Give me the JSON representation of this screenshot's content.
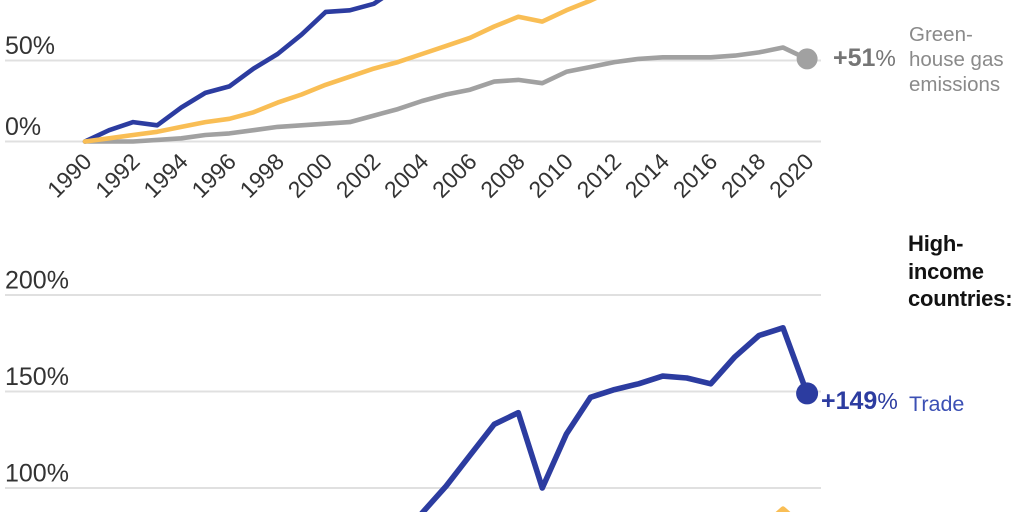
{
  "colors": {
    "background": "#ffffff",
    "grid": "#e0e0e0",
    "axis_text": "#333333",
    "blue_line": "#2c3ca0",
    "blue_label_text": "#3c50b4",
    "blue_value_text": "#2c3ca0",
    "yellow_line": "#f9be55",
    "gray_line": "#a1a1a1",
    "gray_value_text": "#757575",
    "gray_label_text": "#8a8a8a",
    "heading_text": "#121212"
  },
  "chart_data": [
    {
      "position": "top",
      "type": "line",
      "unit": "percent change since 1990",
      "ylim_visible": [
        -8,
        87
      ],
      "grid": true,
      "y_axis": {
        "ticks": [
          {
            "label": "50%",
            "value": 50
          },
          {
            "label": "0%",
            "value": 0
          }
        ]
      },
      "x_axis": {
        "tick_labels": [
          "1990",
          "1992",
          "1994",
          "1996",
          "1998",
          "2000",
          "2002",
          "2004",
          "2006",
          "2008",
          "2010",
          "2012",
          "2014",
          "2016",
          "2018",
          "2020"
        ],
        "rotation_deg": -45
      },
      "series": [
        {
          "name": "series-blue",
          "color_key": "blue_line",
          "years": [
            1990,
            1991,
            1992,
            1993,
            1994,
            1995,
            1996,
            1997,
            1998,
            1999,
            2000,
            2001,
            2002,
            2003
          ],
          "values": [
            0,
            7,
            12,
            10,
            21,
            30,
            34,
            45,
            54,
            66,
            80,
            81,
            85,
            95
          ],
          "end_dot": false,
          "note": "rises off the top edge of the cropped image around 2002"
        },
        {
          "name": "greenhouse-gas-emissions",
          "color_key": "gray_line",
          "years": [
            1990,
            1991,
            1992,
            1993,
            1994,
            1995,
            1996,
            1997,
            1998,
            1999,
            2000,
            2001,
            2002,
            2003,
            2004,
            2005,
            2006,
            2007,
            2008,
            2009,
            2010,
            2011,
            2012,
            2013,
            2014,
            2015,
            2016,
            2017,
            2018,
            2019,
            2020
          ],
          "values": [
            0,
            0,
            0,
            1,
            2,
            4,
            5,
            7,
            9,
            10,
            11,
            12,
            16,
            20,
            25,
            29,
            32,
            37,
            38,
            36,
            43,
            46,
            49,
            51,
            52,
            52,
            52,
            53,
            55,
            58,
            51
          ],
          "end_dot": true
        },
        {
          "name": "series-yellow",
          "color_key": "yellow_line",
          "years": [
            1990,
            1991,
            1992,
            1993,
            1994,
            1995,
            1996,
            1997,
            1998,
            1999,
            2000,
            2001,
            2002,
            2003,
            2004,
            2005,
            2006,
            2007,
            2008,
            2009,
            2010,
            2011,
            2012
          ],
          "values": [
            0,
            2,
            4,
            6,
            9,
            12,
            14,
            18,
            24,
            29,
            35,
            40,
            45,
            49,
            54,
            59,
            64,
            71,
            77,
            74,
            81,
            87,
            94
          ],
          "end_dot": false,
          "note": "rises off the top edge of the cropped image around 2011"
        }
      ],
      "end_label": {
        "value": "+51",
        "percent": "%",
        "series_label_lines": [
          "Green-",
          "house gas",
          "emissions"
        ]
      }
    },
    {
      "position": "bottom",
      "type": "line",
      "unit": "percent change since 1990",
      "ylim_visible": [
        86,
        212
      ],
      "grid": true,
      "heading_lines": [
        "High-",
        "income",
        "countries:"
      ],
      "y_axis": {
        "ticks": [
          {
            "label": "200%",
            "value": 200
          },
          {
            "label": "150%",
            "value": 150
          },
          {
            "label": "100%",
            "value": 100
          }
        ]
      },
      "series": [
        {
          "name": "series-yellow",
          "color_key": "yellow_line",
          "years": [
            2018,
            2019,
            2020
          ],
          "values": [
            78,
            89,
            78
          ],
          "end_dot": false,
          "note": "only the peak tip near 2019 is visible at the bottom crop edge"
        },
        {
          "name": "trade",
          "color_key": "blue_line",
          "years": [
            2004,
            2005,
            2006,
            2007,
            2008,
            2009,
            2010,
            2011,
            2012,
            2013,
            2014,
            2015,
            2016,
            2017,
            2018,
            2019,
            2020
          ],
          "values": [
            87,
            101,
            117,
            133,
            139,
            100,
            128,
            147,
            151,
            154,
            158,
            157,
            154,
            168,
            179,
            183,
            149
          ],
          "end_dot": true,
          "note": "line enters visible area from below around 2004; trough at 2009"
        }
      ],
      "end_label": {
        "value": "+149",
        "percent": "%",
        "series_label": "Trade"
      }
    }
  ]
}
